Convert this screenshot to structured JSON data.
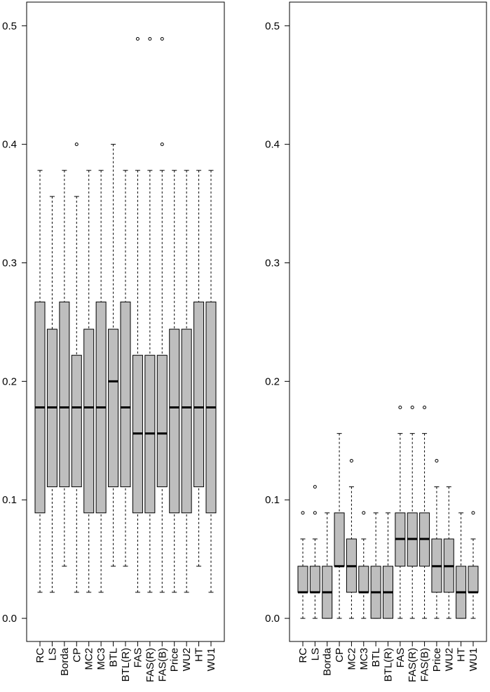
{
  "chart_data": [
    {
      "type": "boxplot",
      "categories": [
        "RC",
        "LS",
        "Borda",
        "CP",
        "MC2",
        "MC3",
        "BTL",
        "BTL(R)",
        "FAS",
        "FAS(R)",
        "FAS(B)",
        "Price",
        "WU2",
        "HT",
        "WU1"
      ],
      "boxes": [
        {
          "whisker_low": 0.022,
          "q1": 0.089,
          "median": 0.178,
          "q3": 0.267,
          "whisker_high": 0.378,
          "outliers": []
        },
        {
          "whisker_low": 0.022,
          "q1": 0.111,
          "median": 0.178,
          "q3": 0.244,
          "whisker_high": 0.356,
          "outliers": []
        },
        {
          "whisker_low": 0.044,
          "q1": 0.111,
          "median": 0.178,
          "q3": 0.267,
          "whisker_high": 0.378,
          "outliers": []
        },
        {
          "whisker_low": 0.022,
          "q1": 0.111,
          "median": 0.178,
          "q3": 0.222,
          "whisker_high": 0.356,
          "outliers": [
            0.4
          ]
        },
        {
          "whisker_low": 0.022,
          "q1": 0.089,
          "median": 0.178,
          "q3": 0.244,
          "whisker_high": 0.378,
          "outliers": []
        },
        {
          "whisker_low": 0.022,
          "q1": 0.089,
          "median": 0.178,
          "q3": 0.267,
          "whisker_high": 0.378,
          "outliers": []
        },
        {
          "whisker_low": 0.044,
          "q1": 0.111,
          "median": 0.2,
          "q3": 0.244,
          "whisker_high": 0.4,
          "outliers": []
        },
        {
          "whisker_low": 0.044,
          "q1": 0.111,
          "median": 0.178,
          "q3": 0.267,
          "whisker_high": 0.378,
          "outliers": []
        },
        {
          "whisker_low": 0.022,
          "q1": 0.089,
          "median": 0.156,
          "q3": 0.222,
          "whisker_high": 0.378,
          "outliers": [
            0.489
          ]
        },
        {
          "whisker_low": 0.022,
          "q1": 0.089,
          "median": 0.156,
          "q3": 0.222,
          "whisker_high": 0.378,
          "outliers": [
            0.489
          ]
        },
        {
          "whisker_low": 0.022,
          "q1": 0.111,
          "median": 0.156,
          "q3": 0.222,
          "whisker_high": 0.378,
          "outliers": [
            0.4,
            0.489
          ]
        },
        {
          "whisker_low": 0.022,
          "q1": 0.089,
          "median": 0.178,
          "q3": 0.244,
          "whisker_high": 0.378,
          "outliers": []
        },
        {
          "whisker_low": 0.022,
          "q1": 0.089,
          "median": 0.178,
          "q3": 0.244,
          "whisker_high": 0.378,
          "outliers": []
        },
        {
          "whisker_low": 0.044,
          "q1": 0.111,
          "median": 0.178,
          "q3": 0.267,
          "whisker_high": 0.378,
          "outliers": []
        },
        {
          "whisker_low": 0.022,
          "q1": 0.089,
          "median": 0.178,
          "q3": 0.267,
          "whisker_high": 0.378,
          "outliers": []
        }
      ],
      "color": "#bebebe",
      "ylim": [
        -0.0195,
        0.52
      ],
      "yticks": [
        {
          "value": 0,
          "label": "0.0"
        },
        0.1,
        0.2,
        0.3,
        0.4,
        0.5
      ]
    },
    {
      "type": "boxplot",
      "categories": [
        "RC",
        "LS",
        "Borda",
        "CP",
        "MC2",
        "MC3",
        "BTL",
        "BTL(R)",
        "FAS",
        "FAS(R)",
        "FAS(B)",
        "Price",
        "WU2",
        "HT",
        "WU1"
      ],
      "boxes": [
        {
          "whisker_low": 0,
          "q1": 0.022,
          "median": 0.022,
          "q3": 0.044,
          "whisker_high": 0.067,
          "outliers": [
            0.089
          ]
        },
        {
          "whisker_low": 0,
          "q1": 0.022,
          "median": 0.022,
          "q3": 0.044,
          "whisker_high": 0.067,
          "outliers": [
            0.089,
            0.111
          ]
        },
        {
          "whisker_low": 0,
          "q1": 0,
          "median": 0.022,
          "q3": 0.044,
          "whisker_high": 0.089,
          "outliers": []
        },
        {
          "whisker_low": 0,
          "q1": 0.044,
          "median": 0.044,
          "q3": 0.089,
          "whisker_high": 0.156,
          "outliers": []
        },
        {
          "whisker_low": 0,
          "q1": 0.022,
          "median": 0.044,
          "q3": 0.067,
          "whisker_high": 0.111,
          "outliers": [
            0.133
          ]
        },
        {
          "whisker_low": 0,
          "q1": 0.022,
          "median": 0.022,
          "q3": 0.044,
          "whisker_high": 0.067,
          "outliers": [
            0.089
          ]
        },
        {
          "whisker_low": 0,
          "q1": 0,
          "median": 0.022,
          "q3": 0.044,
          "whisker_high": 0.089,
          "outliers": []
        },
        {
          "whisker_low": 0,
          "q1": 0,
          "median": 0.022,
          "q3": 0.044,
          "whisker_high": 0.089,
          "outliers": []
        },
        {
          "whisker_low": 0,
          "q1": 0.044,
          "median": 0.067,
          "q3": 0.089,
          "whisker_high": 0.156,
          "outliers": [
            0.178
          ]
        },
        {
          "whisker_low": 0,
          "q1": 0.044,
          "median": 0.067,
          "q3": 0.089,
          "whisker_high": 0.156,
          "outliers": [
            0.178
          ]
        },
        {
          "whisker_low": 0,
          "q1": 0.044,
          "median": 0.067,
          "q3": 0.089,
          "whisker_high": 0.156,
          "outliers": [
            0.178
          ]
        },
        {
          "whisker_low": 0,
          "q1": 0.022,
          "median": 0.044,
          "q3": 0.067,
          "whisker_high": 0.111,
          "outliers": [
            0.133
          ]
        },
        {
          "whisker_low": 0,
          "q1": 0.022,
          "median": 0.044,
          "q3": 0.067,
          "whisker_high": 0.111,
          "outliers": []
        },
        {
          "whisker_low": 0,
          "q1": 0,
          "median": 0.022,
          "q3": 0.044,
          "whisker_high": 0.089,
          "outliers": []
        },
        {
          "whisker_low": 0,
          "q1": 0.022,
          "median": 0.022,
          "q3": 0.044,
          "whisker_high": 0.067,
          "outliers": [
            0.089
          ]
        }
      ],
      "color": "#bebebe",
      "ylim": [
        -0.0195,
        0.52
      ],
      "yticks": [
        {
          "value": 0,
          "label": "0.0"
        },
        0.1,
        0.2,
        0.3,
        0.4,
        0.5
      ]
    }
  ]
}
